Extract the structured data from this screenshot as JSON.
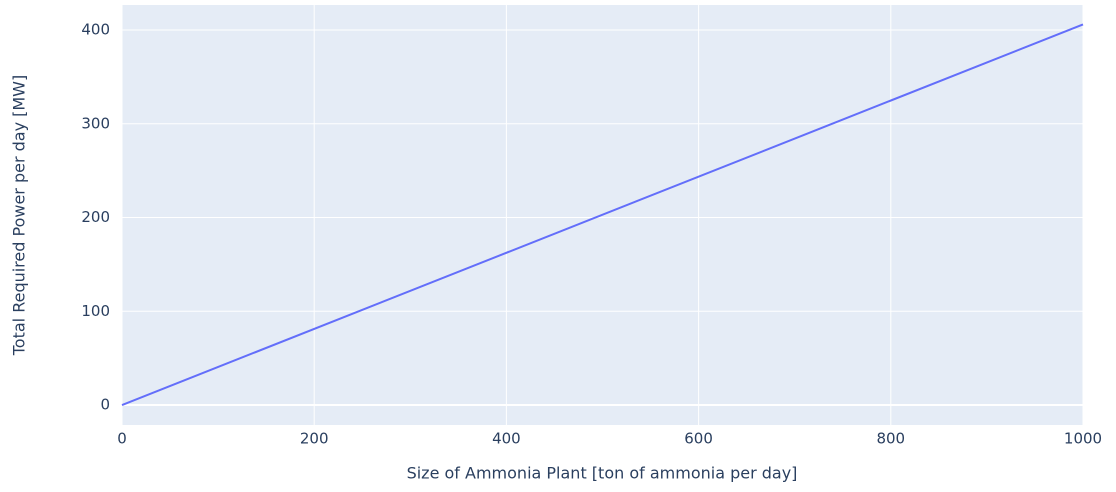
{
  "chart_data": {
    "type": "line",
    "x_label": "Size of Ammonia Plant [ton of ammonia per day]",
    "y_label": "Total Required Power per day [MW]",
    "x": [
      0,
      1000
    ],
    "series": [
      {
        "color": "#636efa",
        "values": [
          0,
          406
        ]
      }
    ],
    "xlim": [
      0,
      1000
    ],
    "xticks": [
      0,
      200,
      400,
      600,
      800,
      1000
    ],
    "ylim": [
      -21.3,
      426.7
    ],
    "yticks": [
      0,
      100,
      200,
      300,
      400
    ],
    "grid": true,
    "background": "#e5ecf6"
  }
}
